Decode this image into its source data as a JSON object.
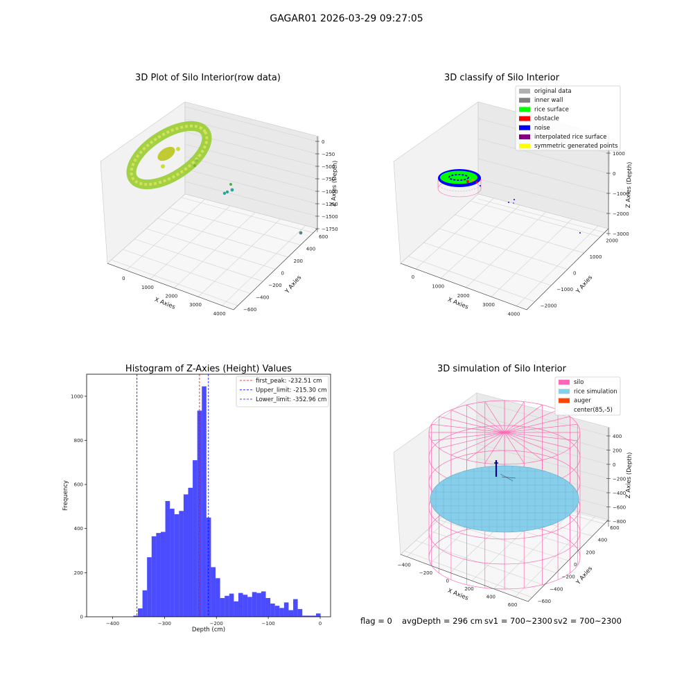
{
  "figure_title": "GAGAR01 2026-03-29 09:27:05",
  "status": {
    "flag": "flag = 0",
    "avgDepth": "avgDepth = 296 cm",
    "sv1": "sv1 = 700~2300",
    "sv2": "sv2 = 700~2300"
  },
  "chart_data": [
    {
      "type": "scatter",
      "title": "3D Plot of Silo Interior(row data)",
      "xlabel": "X Axies",
      "ylabel": "Y Axies",
      "zlabel": "Z Axies (Depth)",
      "x_ticks": [
        "0",
        "1000",
        "2000",
        "3000",
        "4000"
      ],
      "y_ticks": [
        "−600",
        "−400",
        "−200",
        "0",
        "200",
        "400",
        "600"
      ],
      "z_ticks": [
        "0",
        "−250",
        "−500",
        "−750",
        "−1000",
        "−1250",
        "−1500",
        "−1750"
      ],
      "colormap": "viridis",
      "grid": true
    },
    {
      "type": "scatter",
      "title": "3D classify of Silo Interior",
      "xlabel": "X Axies",
      "ylabel": "Y Axies",
      "zlabel": "Z Axies (Depth)",
      "x_ticks": [
        "0",
        "1000",
        "2000",
        "3000",
        "4000"
      ],
      "y_ticks": [
        "−2000",
        "−1000",
        "0",
        "1000",
        "2000"
      ],
      "z_ticks": [
        "1000",
        "0",
        "−1000",
        "−2000",
        "−3000"
      ],
      "legend_position": "top-right",
      "legend": [
        {
          "label": "original data",
          "color": "#b0b0b0"
        },
        {
          "label": "inner wall",
          "color": "#808080"
        },
        {
          "label": "rice surface",
          "color": "#00ff00"
        },
        {
          "label": "obstacle",
          "color": "#ff0000"
        },
        {
          "label": "noise",
          "color": "#0000ff"
        },
        {
          "label": "interpolated rice surface",
          "color": "#800080"
        },
        {
          "label": "symmetric generated points",
          "color": "#ffff00"
        }
      ],
      "grid": true
    },
    {
      "type": "bar",
      "title": "Histogram of Z-Axies (Height) Values",
      "xlabel": "Depth (cm)",
      "ylabel": "Frequency",
      "xlim": [
        -450,
        20
      ],
      "ylim": [
        0,
        1100
      ],
      "x_ticks": [
        -400,
        -300,
        -200,
        -100,
        0
      ],
      "x_tick_labels": [
        "−400",
        "−300",
        "−200",
        "−100",
        "0"
      ],
      "y_ticks": [
        0,
        200,
        400,
        600,
        800,
        1000
      ],
      "bin_width": 8.8,
      "bin_starts": [
        -439.2,
        -430.4,
        -421.6,
        -412.8,
        -404.0,
        -395.2,
        -386.4,
        -377.6,
        -368.8,
        -360.0,
        -351.2,
        -342.4,
        -333.6,
        -324.8,
        -316.0,
        -307.2,
        -298.4,
        -289.6,
        -280.8,
        -272.0,
        -263.2,
        -254.4,
        -245.6,
        -236.8,
        -228.0,
        -219.2,
        -210.4,
        -201.6,
        -192.8,
        -184.0,
        -175.2,
        -166.4,
        -157.6,
        -148.8,
        -140.0,
        -131.2,
        -122.4,
        -113.6,
        -104.8,
        -96.0,
        -87.2,
        -78.4,
        -69.6,
        -60.8,
        -52.0,
        -43.2,
        -34.4,
        -25.6,
        -16.8,
        -8.0
      ],
      "values": [
        0,
        0,
        0,
        0,
        0,
        0,
        0,
        0,
        0,
        5,
        38,
        120,
        270,
        365,
        380,
        385,
        525,
        490,
        465,
        480,
        555,
        585,
        710,
        935,
        1045,
        450,
        225,
        175,
        85,
        95,
        105,
        70,
        108,
        100,
        90,
        112,
        108,
        115,
        85,
        60,
        50,
        40,
        65,
        30,
        80,
        35,
        5,
        5,
        5,
        15
      ],
      "color": "#0000ff",
      "vlines": [
        {
          "label": "first_peak: -232.51 cm",
          "x": -232.51,
          "color": "#ff0000"
        },
        {
          "label": "Upper_limit: -215.30 cm",
          "x": -215.3,
          "color": "#0000ff"
        },
        {
          "label": "Lower_limit: -352.96 cm",
          "x": -352.96,
          "color": "#0000ff"
        }
      ],
      "legend_position": "top-right",
      "grid": false
    },
    {
      "type": "scatter",
      "title": "3D simulation of Silo Interior",
      "xlabel": "X Axies",
      "ylabel": "Y Axies",
      "zlabel": "Z Axies (Depth)",
      "x_ticks": [
        "−400",
        "−200",
        "0",
        "200",
        "400",
        "600"
      ],
      "y_ticks": [
        "−600",
        "−400",
        "−200",
        "0",
        "200",
        "400",
        "600"
      ],
      "z_ticks": [
        "400",
        "200",
        "0",
        "−200",
        "−400",
        "−600",
        "−800"
      ],
      "legend_position": "top-right",
      "legend": [
        {
          "label": "silo",
          "color": "#ff69b4"
        },
        {
          "label": "rice simulation",
          "color": "#87ceeb"
        },
        {
          "label": "auger",
          "color": "#ff4500"
        },
        {
          "label": "center(85,-5)",
          "color": "#ffffff"
        }
      ],
      "grid": true
    }
  ]
}
